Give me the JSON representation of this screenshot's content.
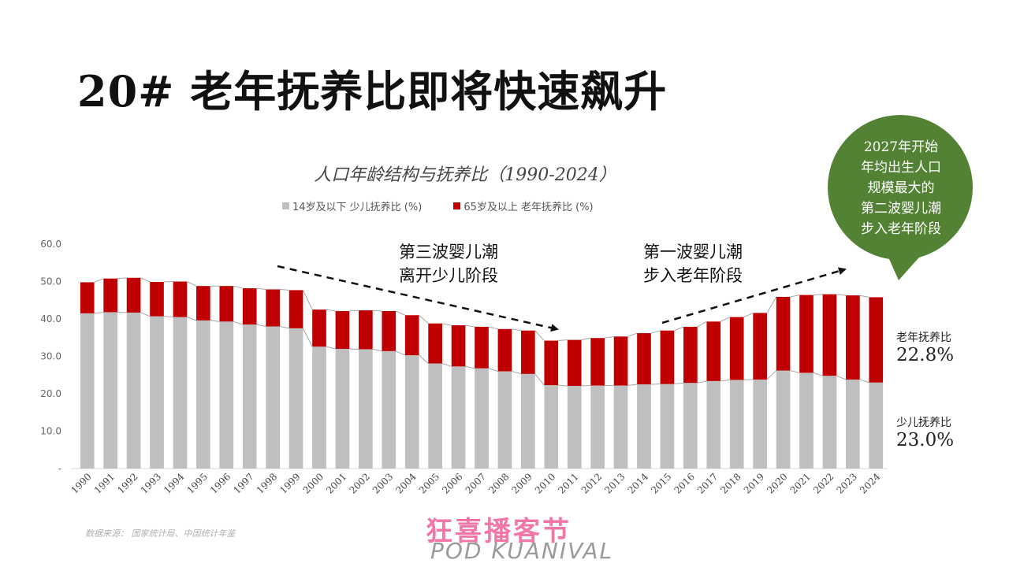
{
  "slide": {
    "title": "20# 老年抚养比即将快速飙升",
    "source": "数据来源：  国家统计局、中国统计年鉴"
  },
  "annotations": {
    "third_wave": [
      "第三波婴儿潮",
      "离开少儿阶段"
    ],
    "first_wave": [
      "第一波婴儿潮",
      "步入老年阶段"
    ],
    "bubble": [
      "2027年开始",
      "年均出生人口",
      "规模最大的",
      "第二波婴儿潮",
      "步入老年阶段"
    ]
  },
  "side_labels": {
    "elderly_label": "老年抚养比",
    "elderly_value": "22.8%",
    "child_label": "少儿抚养比",
    "child_value": "23.0%"
  },
  "logo": {
    "main": "狂喜播客节",
    "sub": "POD KUANIVAL"
  },
  "colors": {
    "child": "#bfbfbf",
    "elderly": "#c00000",
    "bubble": "#548235"
  },
  "chart_data": {
    "type": "bar",
    "stacked": true,
    "title": "人口年龄结构与抚养比（1990-2024）",
    "categories": [
      "1990",
      "1991",
      "1992",
      "1993",
      "1994",
      "1995",
      "1996",
      "1997",
      "1998",
      "1999",
      "2000",
      "2001",
      "2002",
      "2003",
      "2004",
      "2005",
      "2006",
      "2007",
      "2008",
      "2009",
      "2010",
      "2011",
      "2012",
      "2013",
      "2014",
      "2015",
      "2016",
      "2017",
      "2018",
      "2019",
      "2020",
      "2021",
      "2022",
      "2023",
      "2024"
    ],
    "series": [
      {
        "name": "14岁及以下 少儿抚养比 (%)",
        "color": "#bfbfbf",
        "values": [
          41.5,
          41.8,
          41.7,
          40.7,
          40.5,
          39.6,
          39.3,
          38.5,
          38.0,
          37.5,
          32.6,
          32.0,
          31.9,
          31.4,
          30.3,
          28.1,
          27.3,
          26.8,
          26.0,
          25.3,
          22.3,
          22.1,
          22.2,
          22.2,
          22.5,
          22.6,
          22.9,
          23.4,
          23.7,
          23.8,
          26.2,
          25.6,
          24.8,
          23.8,
          23.0
        ]
      },
      {
        "name": "65岁及以上 老年抚养比 (%)",
        "color": "#c00000",
        "values": [
          8.3,
          9.0,
          9.3,
          9.2,
          9.5,
          9.2,
          9.5,
          9.7,
          9.9,
          10.2,
          9.9,
          10.1,
          10.4,
          10.7,
          10.7,
          10.7,
          11.0,
          11.1,
          11.3,
          11.6,
          11.9,
          12.3,
          12.7,
          13.1,
          13.7,
          14.3,
          15.0,
          15.9,
          16.8,
          17.8,
          19.7,
          20.8,
          21.8,
          22.5,
          22.8
        ]
      }
    ],
    "y_ticks": [
      "-",
      "10.0",
      "20.0",
      "30.0",
      "40.0",
      "50.0",
      "60.0"
    ],
    "ylim": [
      0,
      60
    ],
    "grid": false,
    "legend_position": "top"
  }
}
